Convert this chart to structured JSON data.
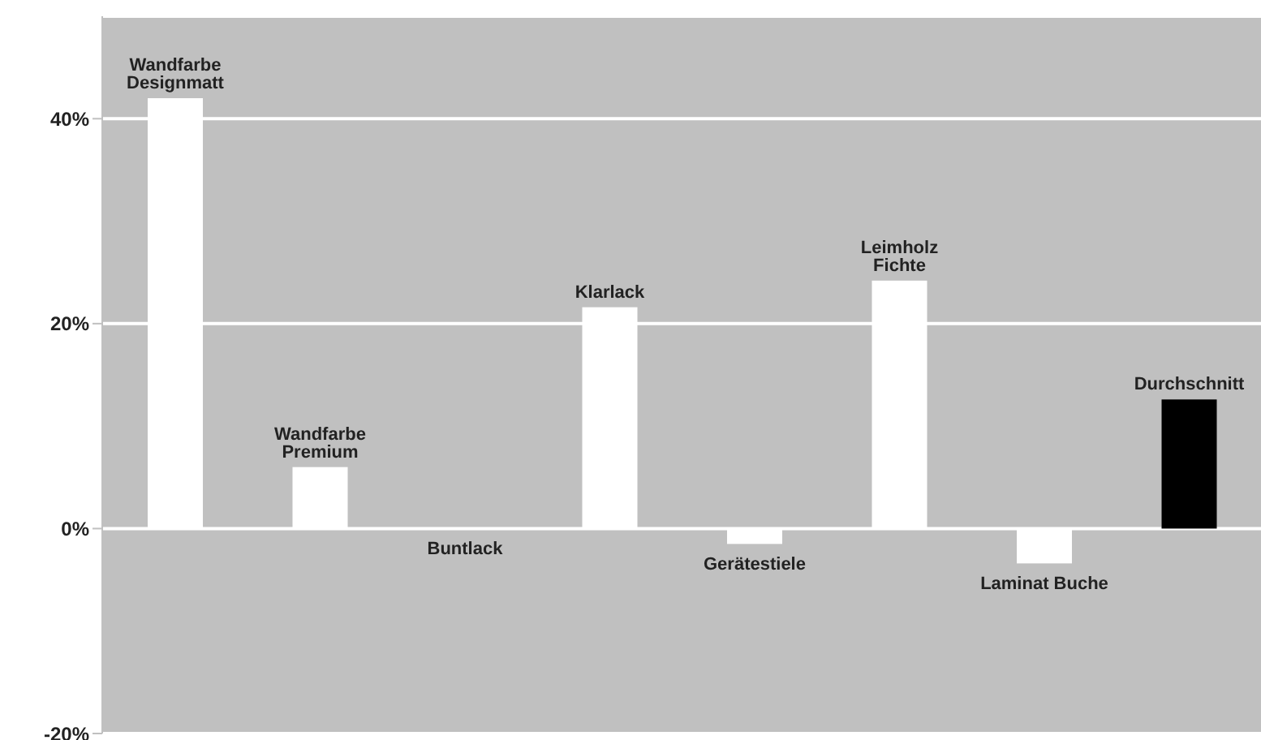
{
  "chart_data": {
    "type": "bar",
    "categories": [
      "Wandfarbe Designmatt",
      "Wandfarbe Premium",
      "Buntlack",
      "Klarlack",
      "Gerätestiele",
      "Leimholz Fichte",
      "Laminat Buche",
      "Durchschnitt"
    ],
    "values": [
      42,
      6,
      0,
      21.6,
      -1.5,
      24.2,
      -3.4,
      12.6
    ],
    "colors": [
      "#ffffff",
      "#ffffff",
      "#ffffff",
      "#ffffff",
      "#ffffff",
      "#ffffff",
      "#ffffff",
      "#000000"
    ],
    "ylim": [
      -20,
      50
    ],
    "yticks": [
      {
        "value": -20,
        "label": "-20%"
      },
      {
        "value": 0,
        "label": "0%"
      },
      {
        "value": 20,
        "label": "20%"
      },
      {
        "value": 40,
        "label": "40%"
      }
    ],
    "grid": "y",
    "tick_labels": "y"
  }
}
